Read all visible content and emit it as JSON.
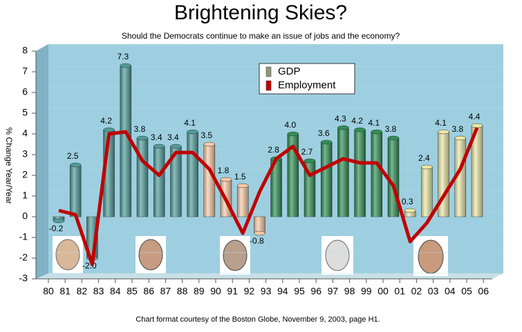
{
  "chart_data": {
    "type": "bar",
    "title": "Brightening Skies?",
    "subtitle": "Should the Democrats continue to make an issue of jobs and the economy?",
    "y_label": "% Change Year/Year",
    "footnote": "Chart format courtesy of the Boston Globe, November 9, 2003, page H1.",
    "categories": [
      "80",
      "81",
      "82",
      "83",
      "84",
      "85",
      "86",
      "87",
      "88",
      "89",
      "90",
      "91",
      "92",
      "93",
      "94",
      "95",
      "96",
      "97",
      "98",
      "99",
      "00",
      "01",
      "02",
      "03",
      "04",
      "05",
      "06"
    ],
    "series": [
      {
        "name": "GDP",
        "color": "#8b9a78",
        "type": "bar",
        "bar_colors": [
          "#4f9c9a",
          "#4f9c9a",
          "#4f9c9a",
          "#4f9c9a",
          "#4f9c9a",
          "#4f9c9a",
          "#4f9c9a",
          "#4f9c9a",
          "#4f9c9a",
          "#f7c9a6",
          "#f7c9a6",
          "#f7c9a6",
          "#f7c9a6",
          "#2f8f55",
          "#2f8f55",
          "#2f8f55",
          "#2f8f55",
          "#2f8f55",
          "#2f8f55",
          "#2f8f55",
          "#2f8f55",
          "#ece8a8",
          "#ece8a8",
          "#ece8a8",
          "#ece8a8",
          "#ece8a8",
          null
        ],
        "values": [
          -0.2,
          2.5,
          -2.0,
          4.2,
          7.3,
          3.8,
          3.4,
          3.4,
          4.1,
          3.5,
          1.8,
          1.5,
          -0.8,
          2.8,
          4.0,
          2.7,
          3.6,
          4.3,
          4.2,
          4.1,
          3.8,
          0.3,
          2.4,
          4.1,
          3.8,
          4.4,
          null
        ],
        "value_labels": [
          "-0.2",
          "2.5",
          "-2.0",
          "4.2",
          "7.3",
          "3.8",
          "3.4",
          "3.4",
          "4.1",
          "3.5",
          "1.8",
          "1.5",
          "-0.8",
          "2.8",
          "4.0",
          "2.7",
          "3.6",
          "4.3",
          "4.2",
          "4.1",
          "3.8",
          "0.3",
          "2.4",
          "4.1",
          "3.8",
          "4.4",
          null
        ]
      },
      {
        "name": "Employment",
        "color": "#c00000",
        "type": "line",
        "values": [
          0.3,
          0.1,
          -2.3,
          4.0,
          4.1,
          2.7,
          2.0,
          3.1,
          3.1,
          2.3,
          0.8,
          -0.8,
          1.2,
          2.8,
          3.4,
          2.0,
          2.4,
          2.8,
          2.6,
          2.6,
          1.5,
          -1.2,
          -0.3,
          1.0,
          2.3,
          4.3,
          null
        ]
      }
    ],
    "ylim": [
      -3,
      8
    ],
    "yticks": [
      -3,
      -2,
      -1,
      0,
      1,
      2,
      3,
      4,
      5,
      6,
      7,
      8
    ],
    "grid": true
  }
}
